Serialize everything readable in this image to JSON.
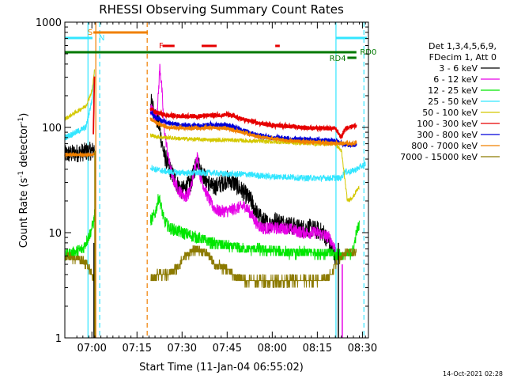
{
  "chart_data": {
    "type": "line",
    "title": "RHESSI Observing Summary Count Rates",
    "xlabel": "Start Time (11-Jan-04 06:55:02)",
    "ylabel_main": "Count Rate (s",
    "ylabel_sup1": "-1",
    "ylabel_mid": " detector",
    "ylabel_sup2": "-1",
    "ylabel_end": ")",
    "y_scale": "log",
    "ylim": [
      1,
      1000
    ],
    "xlim_minutes": [
      -4,
      37
    ],
    "x_ticks": [
      {
        "t": 5,
        "label": "07:00"
      },
      {
        "t": 20,
        "label": "07:15"
      },
      {
        "t": 35,
        "label": "07:30"
      },
      {
        "t": 50,
        "label": "07:45"
      },
      {
        "t": 65,
        "label": "08:00"
      },
      {
        "t": 80,
        "label": "08:15"
      },
      {
        "t": 95,
        "label": "08:30"
      }
    ],
    "y_ticks": [
      {
        "v": 1,
        "label": "1"
      },
      {
        "v": 10,
        "label": "10"
      },
      {
        "v": 100,
        "label": "100"
      },
      {
        "v": 1000,
        "label": "1000"
      }
    ],
    "legend_header": [
      "Det 1,3,4,5,6,9,",
      "FDecim 1, Att 0"
    ],
    "series": [
      {
        "name": "3 - 6 keV",
        "color": "#000000"
      },
      {
        "name": "6 - 12 keV",
        "color": "#e600e6"
      },
      {
        "name": "12 - 25 keV",
        "color": "#00e600"
      },
      {
        "name": "25 - 50 keV",
        "color": "#33e6ff"
      },
      {
        "name": "50 - 100 keV",
        "color": "#d4c800"
      },
      {
        "name": "100 - 300 keV",
        "color": "#e60000"
      },
      {
        "name": "300 - 800 keV",
        "color": "#0000d9"
      },
      {
        "name": "800 - 7000 keV",
        "color": "#f08000"
      },
      {
        "name": "7000 - 15000 keV",
        "color": "#8c7a00"
      }
    ],
    "annotations": [
      {
        "text": "S",
        "color": "#f08000"
      },
      {
        "text": "N",
        "color": "#33e6ff"
      },
      {
        "text": "F",
        "color": "#e60000"
      },
      {
        "text": "RD0",
        "color": "#007800"
      },
      {
        "text": "RD4",
        "color": "#007800"
      }
    ],
    "vertical_markers": [
      {
        "t": 3.7,
        "color": "#33e6ff",
        "style": "solid"
      },
      {
        "t": 6.3,
        "color": "#f08000",
        "style": "solid"
      },
      {
        "t": 7.6,
        "color": "#33e6ff",
        "style": "dashed"
      },
      {
        "t": 23.4,
        "color": "#f08000",
        "style": "dashed"
      },
      {
        "t": 86.2,
        "color": "#33e6ff",
        "style": "solid"
      },
      {
        "t": 95.5,
        "color": "#33e6ff",
        "style": "dashed"
      }
    ],
    "timestamp": "14-Oct-2021 02:28"
  }
}
